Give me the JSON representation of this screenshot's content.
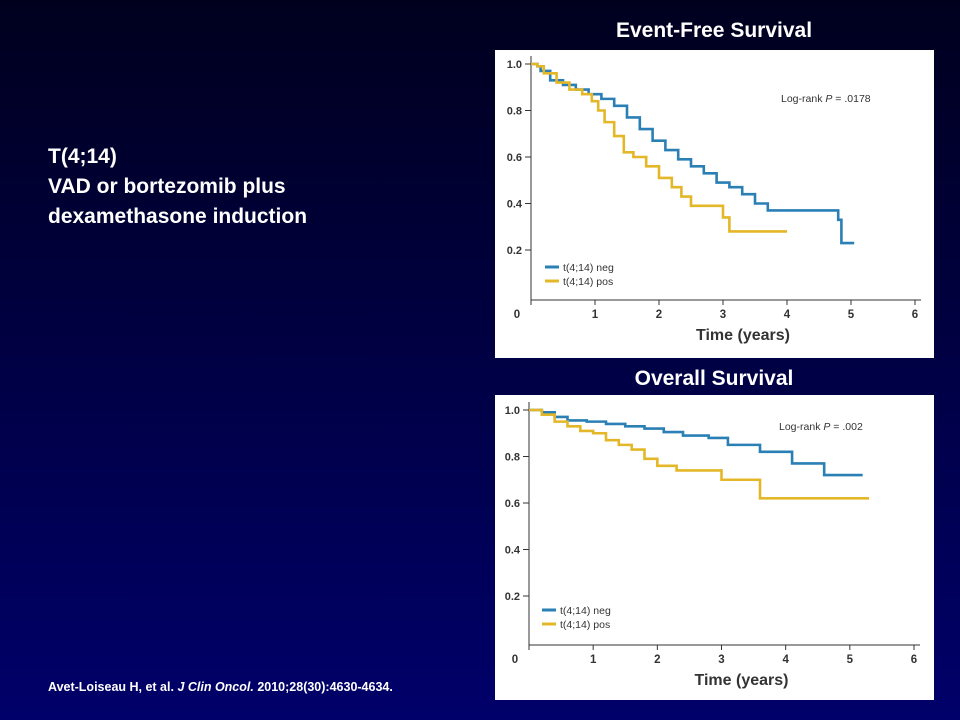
{
  "slide": {
    "lines": [
      "T(4;14)",
      "VAD or bortezomib plus",
      "dexamethasone induction"
    ]
  },
  "citation": {
    "authors": "Avet-Loiseau H, et al. ",
    "journal": "J Clin Oncol.",
    "details": " 2010;28(30):4630-4634."
  },
  "colors": {
    "neg": "#2a7fb5",
    "pos": "#e4b728",
    "axis": "#333333"
  },
  "chart_data": [
    {
      "type": "line",
      "title": "Event-Free Survival",
      "xlabel": "Time (years)",
      "ylabel": "",
      "xlim": [
        0,
        6
      ],
      "ylim": [
        0.2,
        1.0
      ],
      "xticks": [
        "0",
        "1",
        "2",
        "3",
        "4",
        "5",
        "6"
      ],
      "yticks": [
        "0.2",
        "0.4",
        "0.6",
        "0.8",
        "1.0"
      ],
      "annotation_prefix": "Log-rank ",
      "annotation_p": "P",
      "annotation_value": " = .0178",
      "legend_position": "bottom-left",
      "series": [
        {
          "name": "t(4;14) neg",
          "color_key": "neg",
          "x": [
            0,
            0.1,
            0.15,
            0.3,
            0.5,
            0.7,
            0.9,
            1.1,
            1.3,
            1.5,
            1.7,
            1.9,
            2.1,
            2.3,
            2.5,
            2.7,
            2.9,
            3.1,
            3.3,
            3.5,
            3.7,
            4.8,
            4.85,
            5.05
          ],
          "y": [
            1.0,
            0.99,
            0.97,
            0.93,
            0.91,
            0.89,
            0.87,
            0.85,
            0.82,
            0.77,
            0.72,
            0.67,
            0.63,
            0.59,
            0.56,
            0.53,
            0.49,
            0.47,
            0.44,
            0.4,
            0.37,
            0.33,
            0.23,
            0.23
          ]
        },
        {
          "name": "t(4;14) pos",
          "color_key": "pos",
          "x": [
            0,
            0.1,
            0.2,
            0.4,
            0.6,
            0.8,
            0.95,
            1.05,
            1.15,
            1.3,
            1.45,
            1.6,
            1.8,
            2.0,
            2.2,
            2.35,
            2.5,
            3.0,
            3.1,
            3.45,
            4.0
          ],
          "y": [
            1.0,
            0.99,
            0.96,
            0.92,
            0.89,
            0.87,
            0.84,
            0.8,
            0.75,
            0.69,
            0.62,
            0.6,
            0.56,
            0.51,
            0.47,
            0.43,
            0.39,
            0.34,
            0.28,
            0.28,
            0.28
          ]
        }
      ]
    },
    {
      "type": "line",
      "title": "Overall Survival",
      "xlabel": "Time (years)",
      "ylabel": "",
      "xlim": [
        0,
        6
      ],
      "ylim": [
        0.2,
        1.0
      ],
      "xticks": [
        "0",
        "1",
        "2",
        "3",
        "4",
        "5",
        "6"
      ],
      "yticks": [
        "0.2",
        "0.4",
        "0.6",
        "0.8",
        "1.0"
      ],
      "annotation_prefix": "Log-rank ",
      "annotation_p": "P",
      "annotation_value": " = .002",
      "legend_position": "bottom-left",
      "series": [
        {
          "name": "t(4;14) neg",
          "color_key": "neg",
          "x": [
            0,
            0.2,
            0.4,
            0.6,
            0.9,
            1.2,
            1.5,
            1.8,
            2.1,
            2.4,
            2.8,
            3.1,
            3.6,
            4.1,
            4.6,
            5.2
          ],
          "y": [
            1.0,
            0.99,
            0.97,
            0.955,
            0.95,
            0.94,
            0.93,
            0.92,
            0.905,
            0.89,
            0.88,
            0.85,
            0.82,
            0.77,
            0.72,
            0.72
          ]
        },
        {
          "name": "t(4;14) pos",
          "color_key": "pos",
          "x": [
            0,
            0.2,
            0.4,
            0.6,
            0.8,
            1.0,
            1.2,
            1.4,
            1.6,
            1.8,
            2.0,
            2.3,
            3.0,
            3.6,
            5.3
          ],
          "y": [
            1.0,
            0.98,
            0.95,
            0.93,
            0.91,
            0.9,
            0.87,
            0.85,
            0.83,
            0.79,
            0.76,
            0.74,
            0.7,
            0.62,
            0.62
          ]
        }
      ]
    }
  ]
}
